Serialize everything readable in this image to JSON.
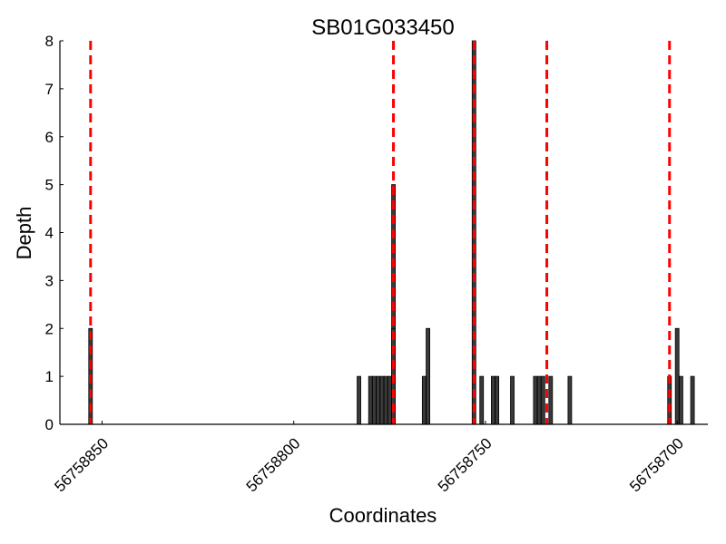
{
  "chart_data": {
    "type": "bar",
    "title": "SB01G033450",
    "xlabel": "Coordinates",
    "ylabel": "Depth",
    "x_axis_reversed": true,
    "xlim": [
      56758861,
      56758692
    ],
    "ylim": [
      0,
      8
    ],
    "x_ticks": [
      56758850,
      56758800,
      56758750,
      56758700
    ],
    "x_tick_labels": [
      "56758850",
      "56758800",
      "56758750",
      "56758700"
    ],
    "y_ticks": [
      0,
      1,
      2,
      3,
      4,
      5,
      6,
      7,
      8
    ],
    "y_tick_labels": [
      "0",
      "1",
      "2",
      "3",
      "4",
      "5",
      "6",
      "7",
      "8"
    ],
    "bar_color": "#3a3a3a",
    "marker_color": "#ff0000",
    "series": [
      {
        "x": [
          56758853,
          56758783,
          56758780,
          56758779,
          56758778,
          56758777,
          56758776,
          56758775,
          56758774,
          56758774,
          56758766,
          56758765,
          56758753,
          56758751,
          56758748,
          56758747,
          56758743,
          56758737,
          56758736,
          56758735,
          56758733,
          56758728,
          56758702,
          56758700,
          56758699,
          56758696
        ],
        "values": [
          2,
          1,
          1,
          1,
          1,
          1,
          1,
          1,
          5,
          2,
          1,
          2,
          8,
          1,
          1,
          1,
          1,
          1,
          1,
          1,
          1,
          1,
          1,
          2,
          1,
          1
        ]
      }
    ],
    "marker_lines_x": [
      56758853,
      56758774,
      56758753,
      56758734,
      56758702
    ]
  }
}
